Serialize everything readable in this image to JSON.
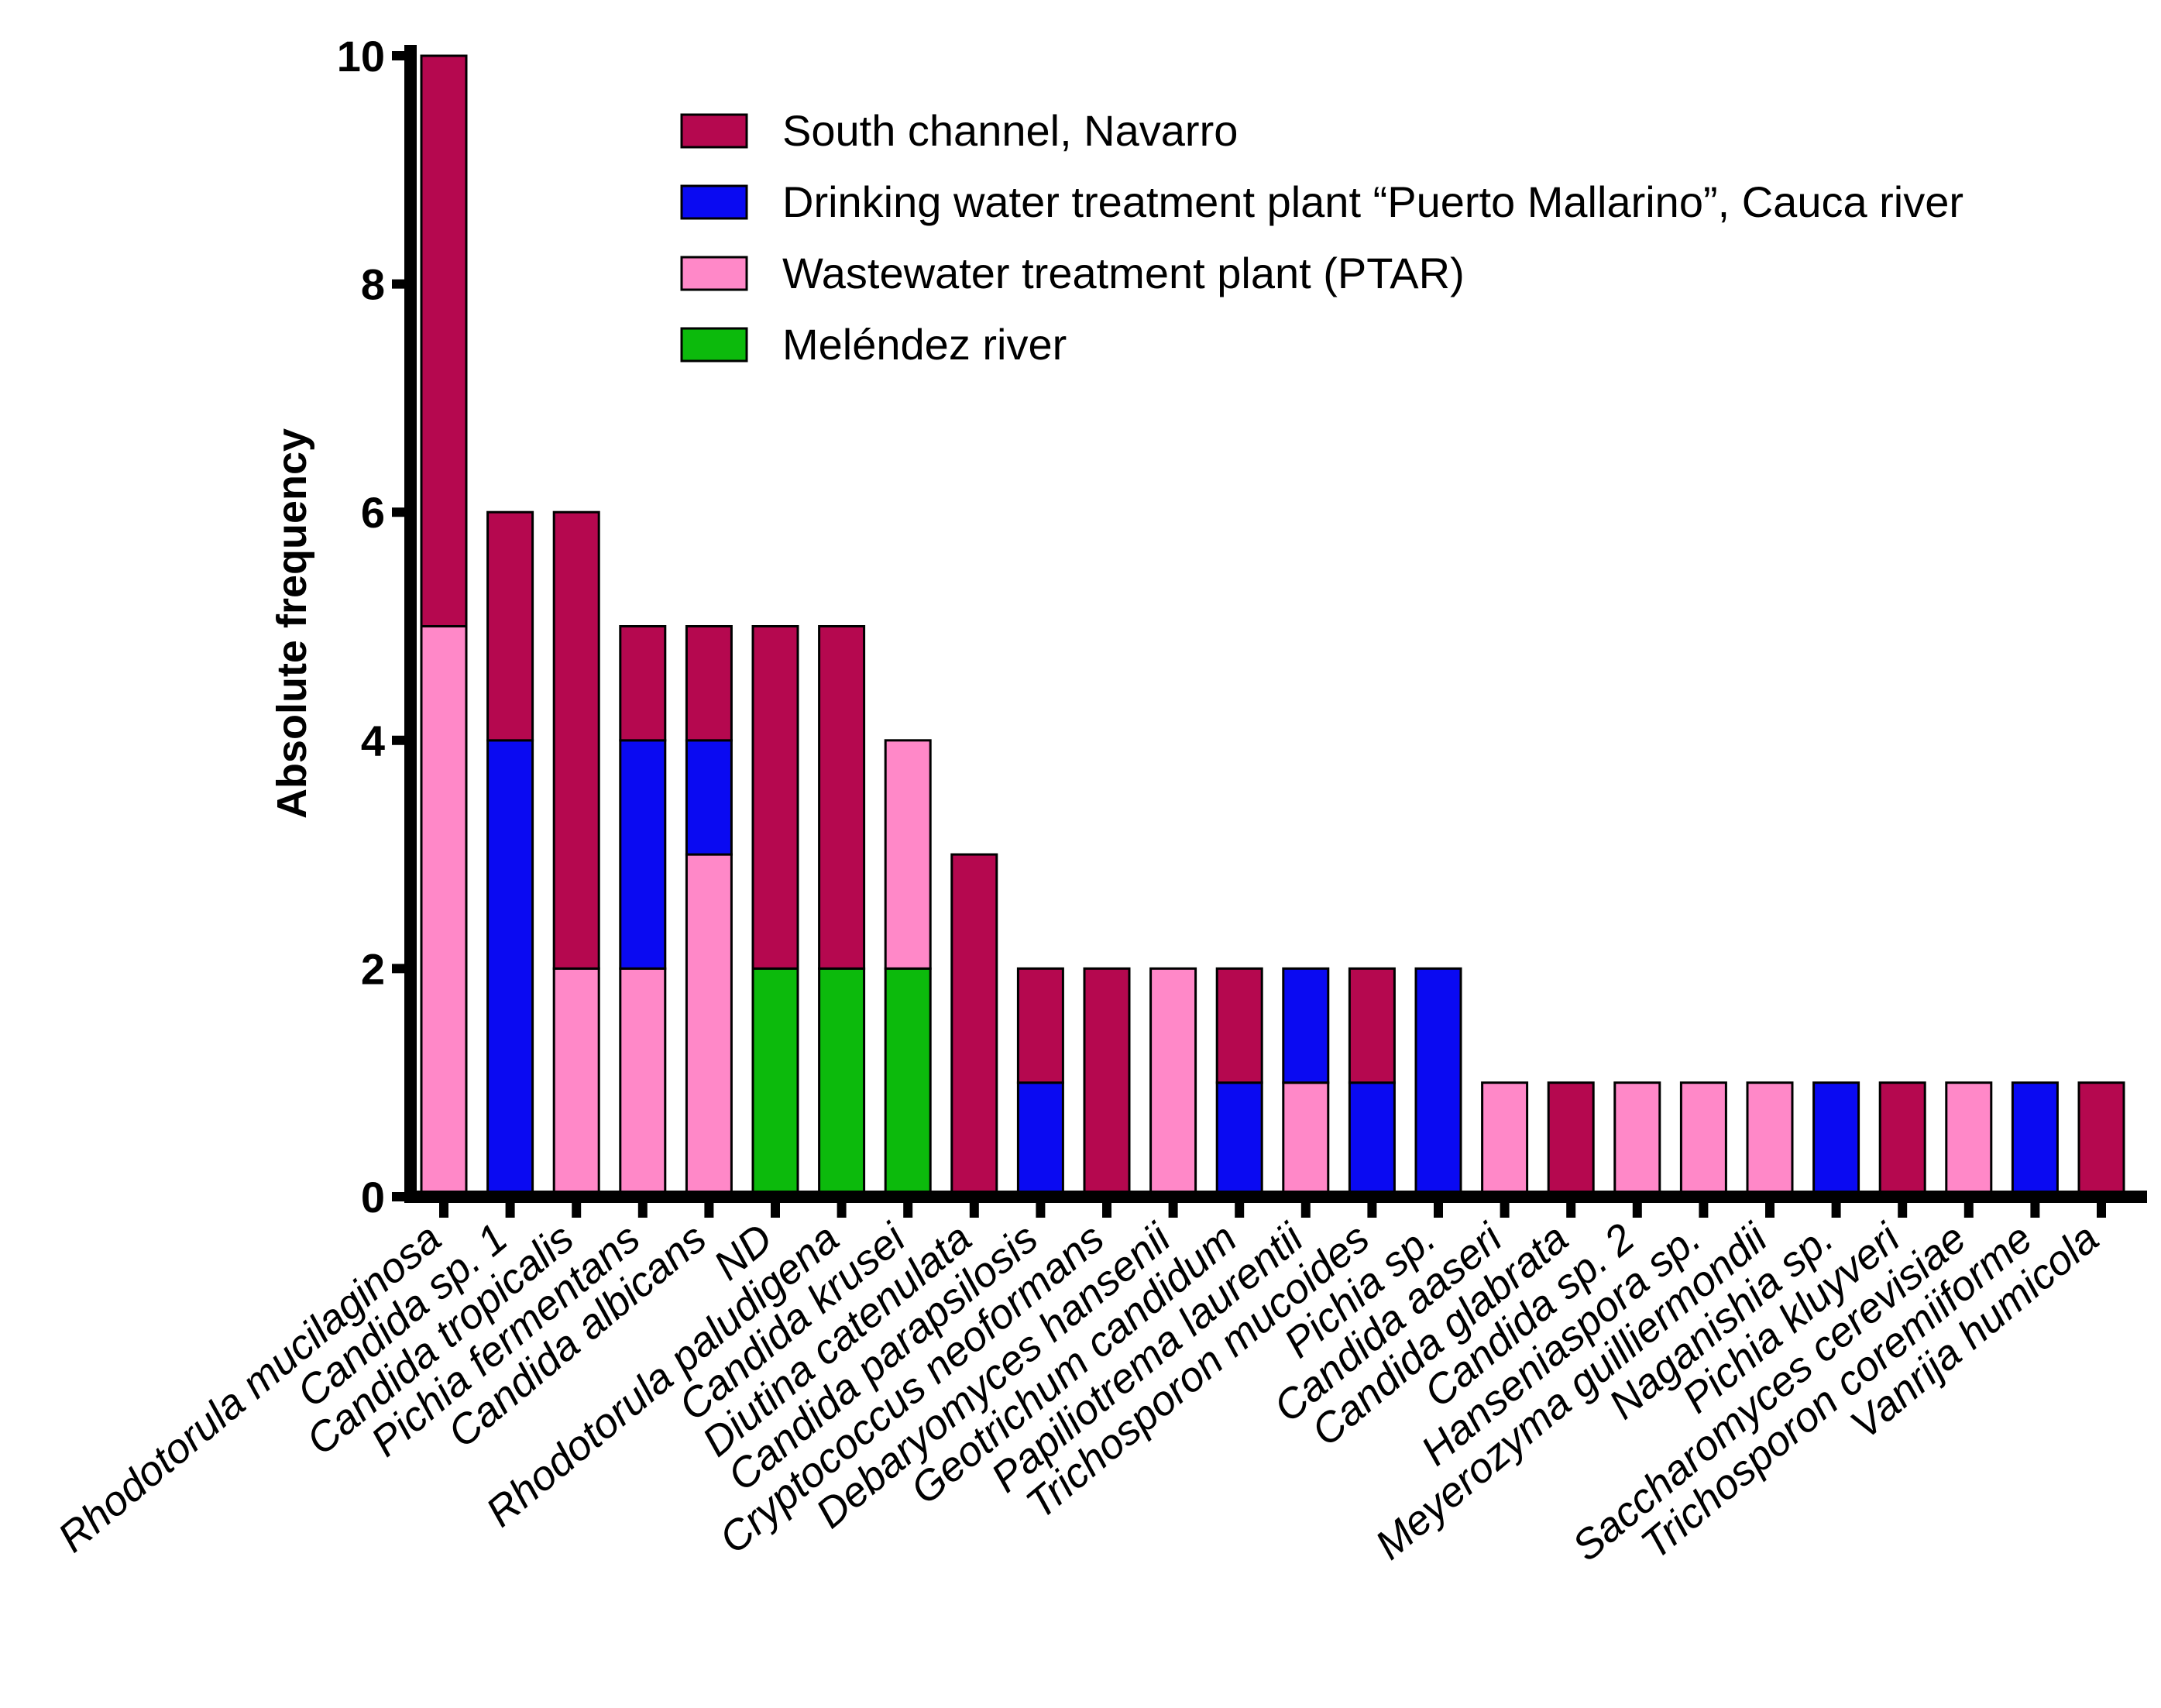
{
  "chart_data": {
    "type": "bar",
    "stacked": true,
    "title": "",
    "xlabel": "",
    "ylabel": "Absolute frequency",
    "ylim": [
      0,
      10
    ],
    "yticks": [
      0,
      2,
      4,
      6,
      8,
      10
    ],
    "legend_position": "top-right",
    "categories": [
      "Rhodotorula mucilaginosa",
      "Candida sp. 1",
      "Candida tropicalis",
      "Pichia fermentans",
      "Candida albicans",
      "ND",
      "Rhodotorula paludigena",
      "Candida krusei",
      "Diutina catenulata",
      "Candida parapsilosis",
      "Cryptococcus neoformans",
      "Debaryomyces hansenii",
      "Geotrichum candidum",
      "Papiliotrema laurentii",
      "Trichosporon mucoides",
      "Pichia sp.",
      "Candida aaseri",
      "Candida glabrata",
      "Candida sp. 2",
      "Hanseniaspora sp.",
      "Meyerozyma guilliermondii",
      "Naganishia sp.",
      "Pichia kluyveri",
      "Saccharomyces cerevisiae",
      "Trichosporon coremiiforme",
      "Vanrija humicola"
    ],
    "stack_order": [
      "Meléndez river",
      "Wastewater treatment plant (PTAR)",
      "Drinking water treatment plant “Puerto Mallarino”, Cauca river",
      "South channel, Navarro"
    ],
    "series": [
      {
        "name": "South channel, Navarro",
        "color": "#B5084F",
        "values": [
          5,
          2,
          4,
          1,
          1,
          3,
          3,
          0,
          3,
          1,
          2,
          0,
          1,
          0,
          1,
          0,
          0,
          1,
          0,
          0,
          0,
          0,
          1,
          0,
          0,
          1
        ]
      },
      {
        "name": "Drinking water treatment plant “Puerto Mallarino”, Cauca river",
        "color": "#0A0AF2",
        "values": [
          0,
          4,
          0,
          2,
          1,
          0,
          0,
          0,
          0,
          1,
          0,
          0,
          1,
          1,
          1,
          2,
          0,
          0,
          0,
          0,
          0,
          1,
          0,
          0,
          1,
          0
        ]
      },
      {
        "name": "Wastewater treatment plant (PTAR)",
        "color": "#FF88C8",
        "values": [
          5,
          0,
          2,
          2,
          3,
          0,
          0,
          2,
          0,
          0,
          0,
          2,
          0,
          1,
          0,
          0,
          1,
          0,
          1,
          1,
          1,
          0,
          0,
          1,
          0,
          0
        ]
      },
      {
        "name": "Meléndez river",
        "color": "#0CBA0C",
        "values": [
          0,
          0,
          0,
          0,
          0,
          2,
          2,
          2,
          0,
          0,
          0,
          0,
          0,
          0,
          0,
          0,
          0,
          0,
          0,
          0,
          0,
          0,
          0,
          0,
          0,
          0
        ]
      }
    ]
  }
}
